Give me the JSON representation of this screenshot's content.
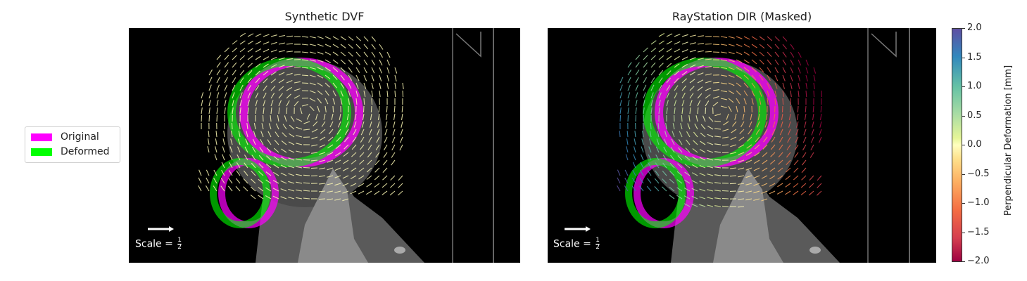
{
  "chart_data": [
    {
      "type": "quiver",
      "title": "Synthetic DVF",
      "vector_color": "#fbf7b3",
      "scale_text": "Scale = ",
      "scale_num": "1",
      "scale_den": "2"
    },
    {
      "type": "quiver",
      "title": "RayStation DIR (Masked)",
      "colormap": "Spectral",
      "scale_text": "Scale = ",
      "scale_num": "1",
      "scale_den": "2",
      "colorbar": {
        "label": "Perpendicular Deformation [mm]",
        "range": [
          -2.0,
          2.0
        ],
        "ticks": [
          "2.0",
          "1.5",
          "1.0",
          "0.5",
          "0.0",
          "−0.5",
          "−1.0",
          "−1.5",
          "−2.0"
        ]
      }
    }
  ],
  "legend": {
    "items": [
      {
        "label": "Original",
        "color": "#ff00ff"
      },
      {
        "label": "Deformed",
        "color": "#00ff00"
      }
    ]
  }
}
